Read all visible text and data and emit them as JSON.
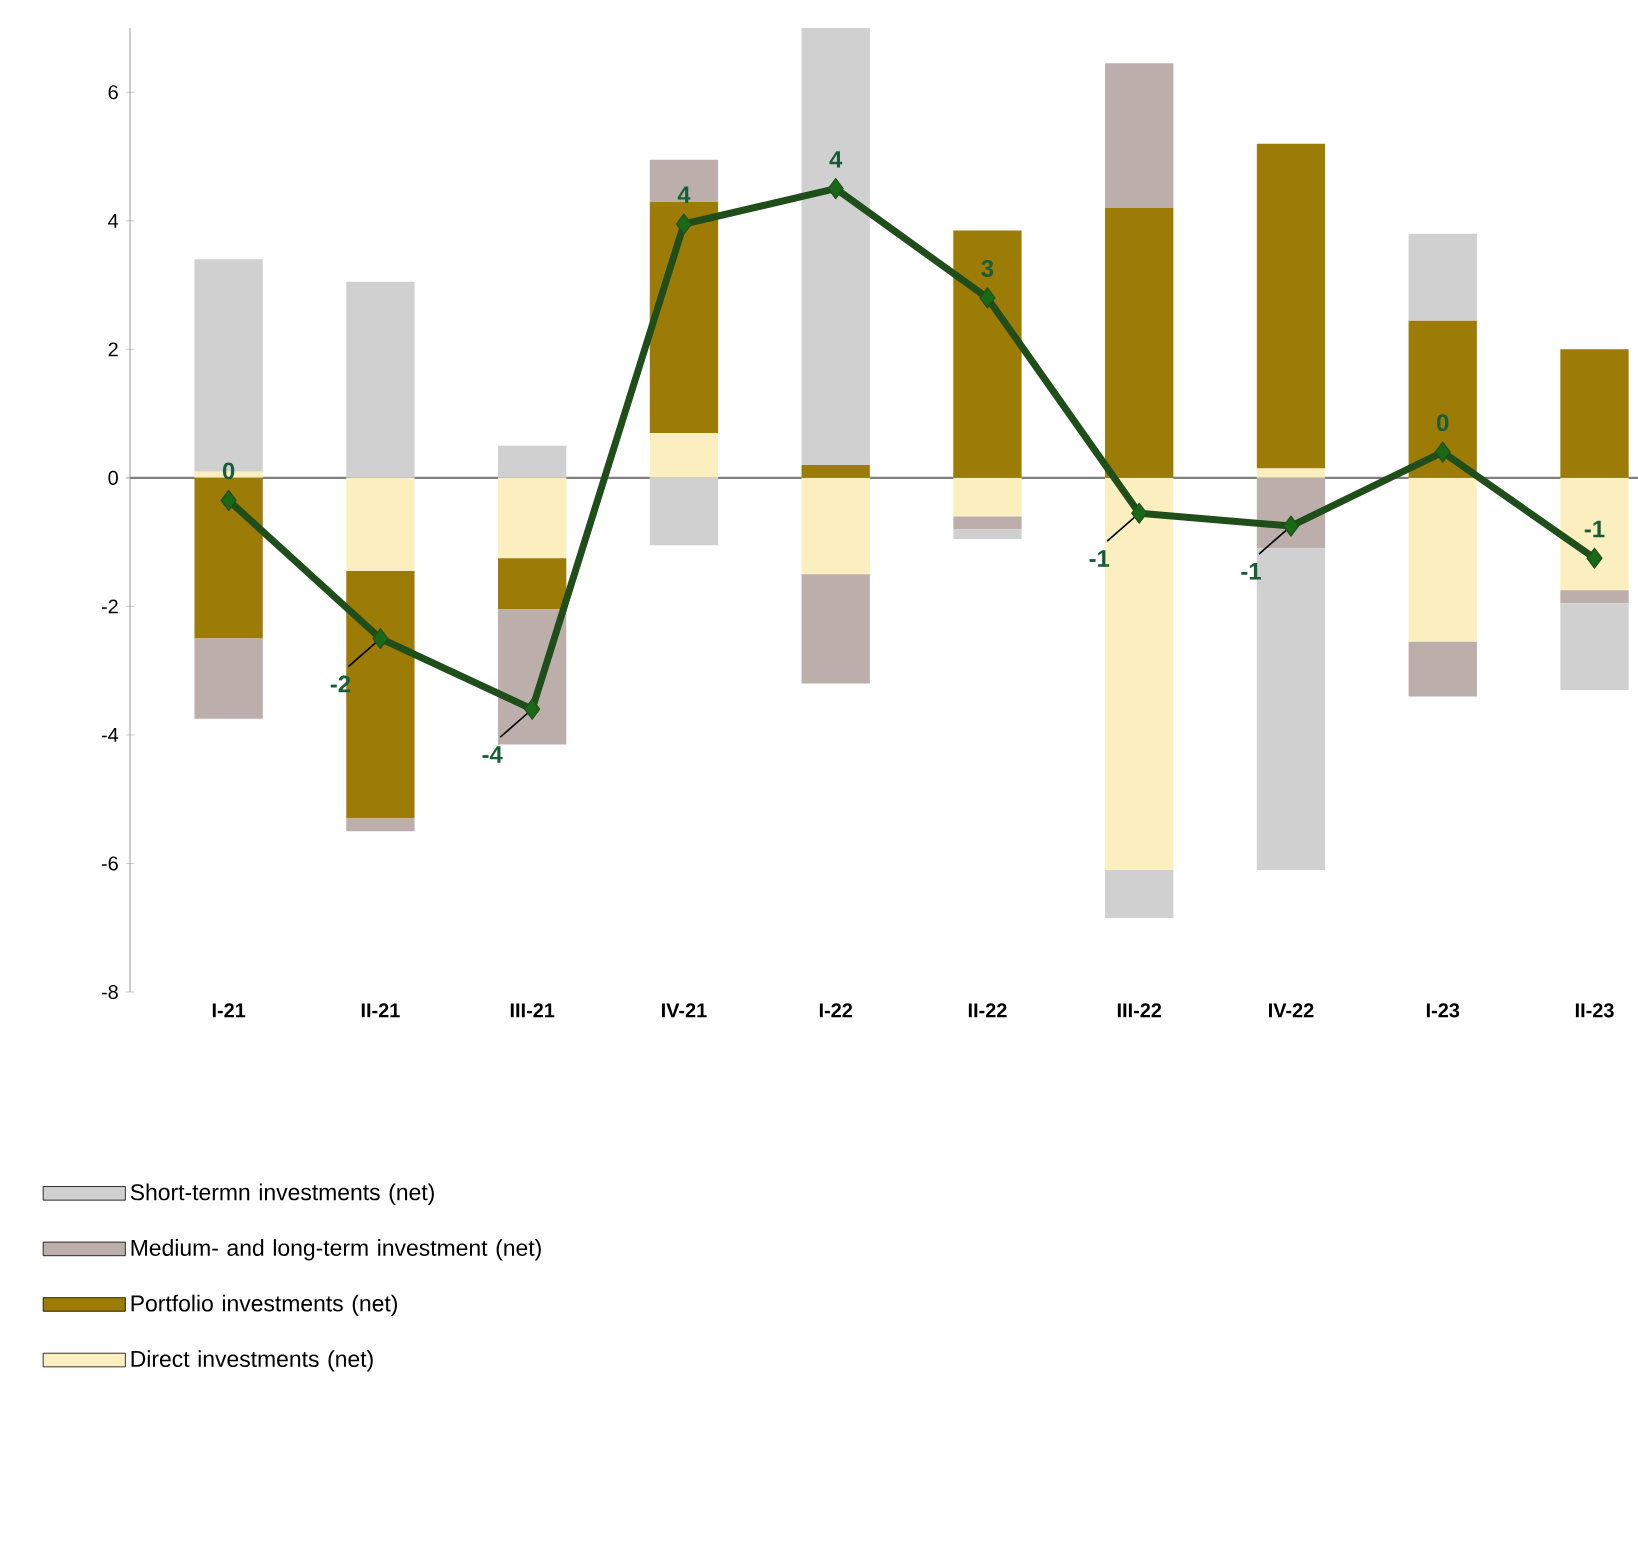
{
  "chart_data": {
    "type": "bar",
    "stacked": true,
    "legend": "bottom",
    "marker": "diamond",
    "categories": [
      "I-21",
      "II-21",
      "III-21",
      "IV-21",
      "I-22",
      "II-22",
      "III-22",
      "IV-22",
      "I-23",
      "II-23"
    ],
    "ylim": [
      -8,
      7
    ],
    "yticks": [
      -8,
      -6,
      -4,
      -2,
      0,
      2,
      4,
      6
    ],
    "series": [
      {
        "name": "Direct investments (net)",
        "color": "#fcefbf",
        "values": [
          0.1,
          -1.45,
          -1.25,
          0.7,
          -1.5,
          -0.6,
          -6.1,
          0.15,
          -2.55,
          -1.75
        ]
      },
      {
        "name": "Portfolio investments (net)",
        "color": "#9c7b06",
        "values": [
          -2.5,
          -3.85,
          -0.8,
          3.6,
          0.2,
          3.85,
          4.2,
          5.05,
          2.45,
          2.0
        ]
      },
      {
        "name": "Medium- and long-term investment (net)",
        "color": "#bcaeab",
        "values": [
          -1.25,
          -0.2,
          -2.1,
          0.65,
          -1.7,
          -0.2,
          2.25,
          -1.1,
          -0.85,
          -0.2
        ]
      },
      {
        "name": "Short-termn investments (net)",
        "color": "#d0d0d0",
        "values": [
          3.3,
          3.05,
          0.5,
          -1.05,
          6.8,
          -0.15,
          -0.75,
          -5.0,
          1.35,
          -1.35
        ]
      },
      {
        "type": "line",
        "color": "#1f4e1a",
        "values": [
          -0.35,
          -2.5,
          -3.6,
          3.95,
          4.5,
          2.8,
          -0.55,
          -0.75,
          0.4,
          -1.25
        ],
        "value_labels": [
          "0",
          "-2",
          "-4",
          "4",
          "4",
          "3",
          "-1",
          "-1",
          "0",
          "-1"
        ]
      }
    ]
  }
}
